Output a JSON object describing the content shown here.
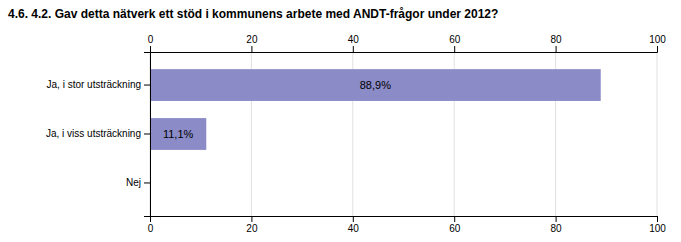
{
  "chart_data": {
    "type": "bar",
    "orientation": "horizontal",
    "title": "4.6. 4.2. Gav detta nätverk ett stöd i kommunens arbete med ANDT-frågor under 2012?",
    "categories": [
      "Ja, i stor utsträckning",
      "Ja, i viss utsträckning",
      "Nej"
    ],
    "values": [
      88.9,
      11.1,
      0
    ],
    "value_labels": [
      "88,9%",
      "11,1%",
      null
    ],
    "color": "#8B8BC8",
    "xlim": [
      0,
      100
    ],
    "xticks": [
      0,
      20,
      40,
      60,
      80,
      100
    ],
    "grid": true
  }
}
